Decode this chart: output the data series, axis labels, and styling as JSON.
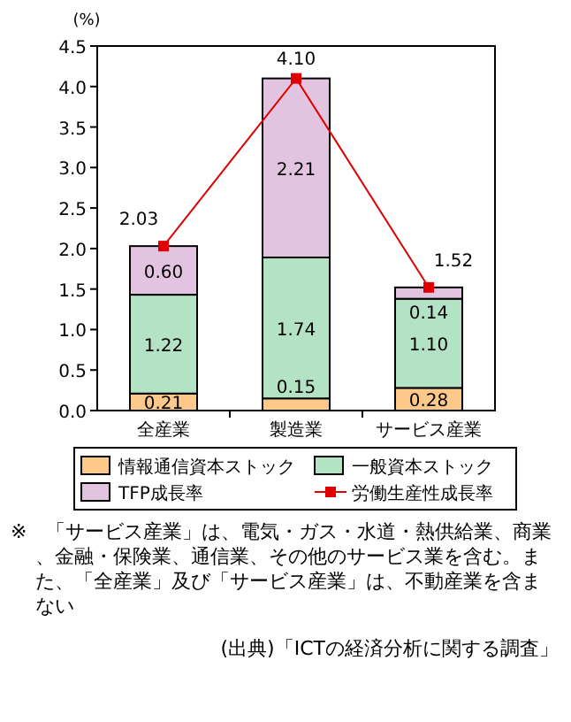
{
  "chart_data": {
    "type": "bar",
    "stacked": true,
    "ylabel": "(%)",
    "categories": [
      "全産業",
      "製造業",
      "サービス産業"
    ],
    "series": [
      {
        "name": "情報通信資本ストック",
        "color": "#fdc98a",
        "values": [
          0.21,
          0.15,
          0.28
        ],
        "value_labels": [
          "0.21",
          "0.15",
          "0.28"
        ]
      },
      {
        "name": "一般資本ストック",
        "color": "#b4e2c4",
        "values": [
          1.22,
          1.74,
          1.1
        ],
        "value_labels": [
          "1.22",
          "1.74",
          "1.10"
        ]
      },
      {
        "name": "TFP成長率",
        "color": "#e3c4e0",
        "values": [
          0.6,
          2.21,
          0.14
        ],
        "value_labels": [
          "0.60",
          "2.21",
          "0.14"
        ]
      },
      {
        "name": "労働生産性成長率",
        "type": "line",
        "color": "#e00000",
        "values": [
          2.03,
          4.1,
          1.52
        ],
        "value_labels": [
          "2.03",
          "4.10",
          "1.52"
        ]
      }
    ],
    "marker": "square",
    "line_style": "solid",
    "ylim": [
      0,
      4.5
    ],
    "yticks": [
      {
        "value": 0,
        "label": "0.0"
      },
      {
        "value": 0.5,
        "label": "0.5"
      },
      {
        "value": 1,
        "label": "1.0"
      },
      {
        "value": 1.5,
        "label": "1.5"
      },
      {
        "value": 2,
        "label": "2.0"
      },
      {
        "value": 2.5,
        "label": "2.5"
      },
      {
        "value": 3,
        "label": "3.0"
      },
      {
        "value": 3.5,
        "label": "3.5"
      },
      {
        "value": 4,
        "label": "4.0"
      },
      {
        "value": 4.5,
        "label": "4.5"
      }
    ],
    "grid": false,
    "legend": "bottom",
    "annotations": [
      "※　「サービス産業」は、電気・ガス・水道・熱供給業、商業、金融・保険業、通信業、その他のサービス業を含む。また、「全産業」及び「サービス産業」は、不動産業を含まない",
      "(出典)「ICTの経済分析に関する調査」"
    ]
  }
}
